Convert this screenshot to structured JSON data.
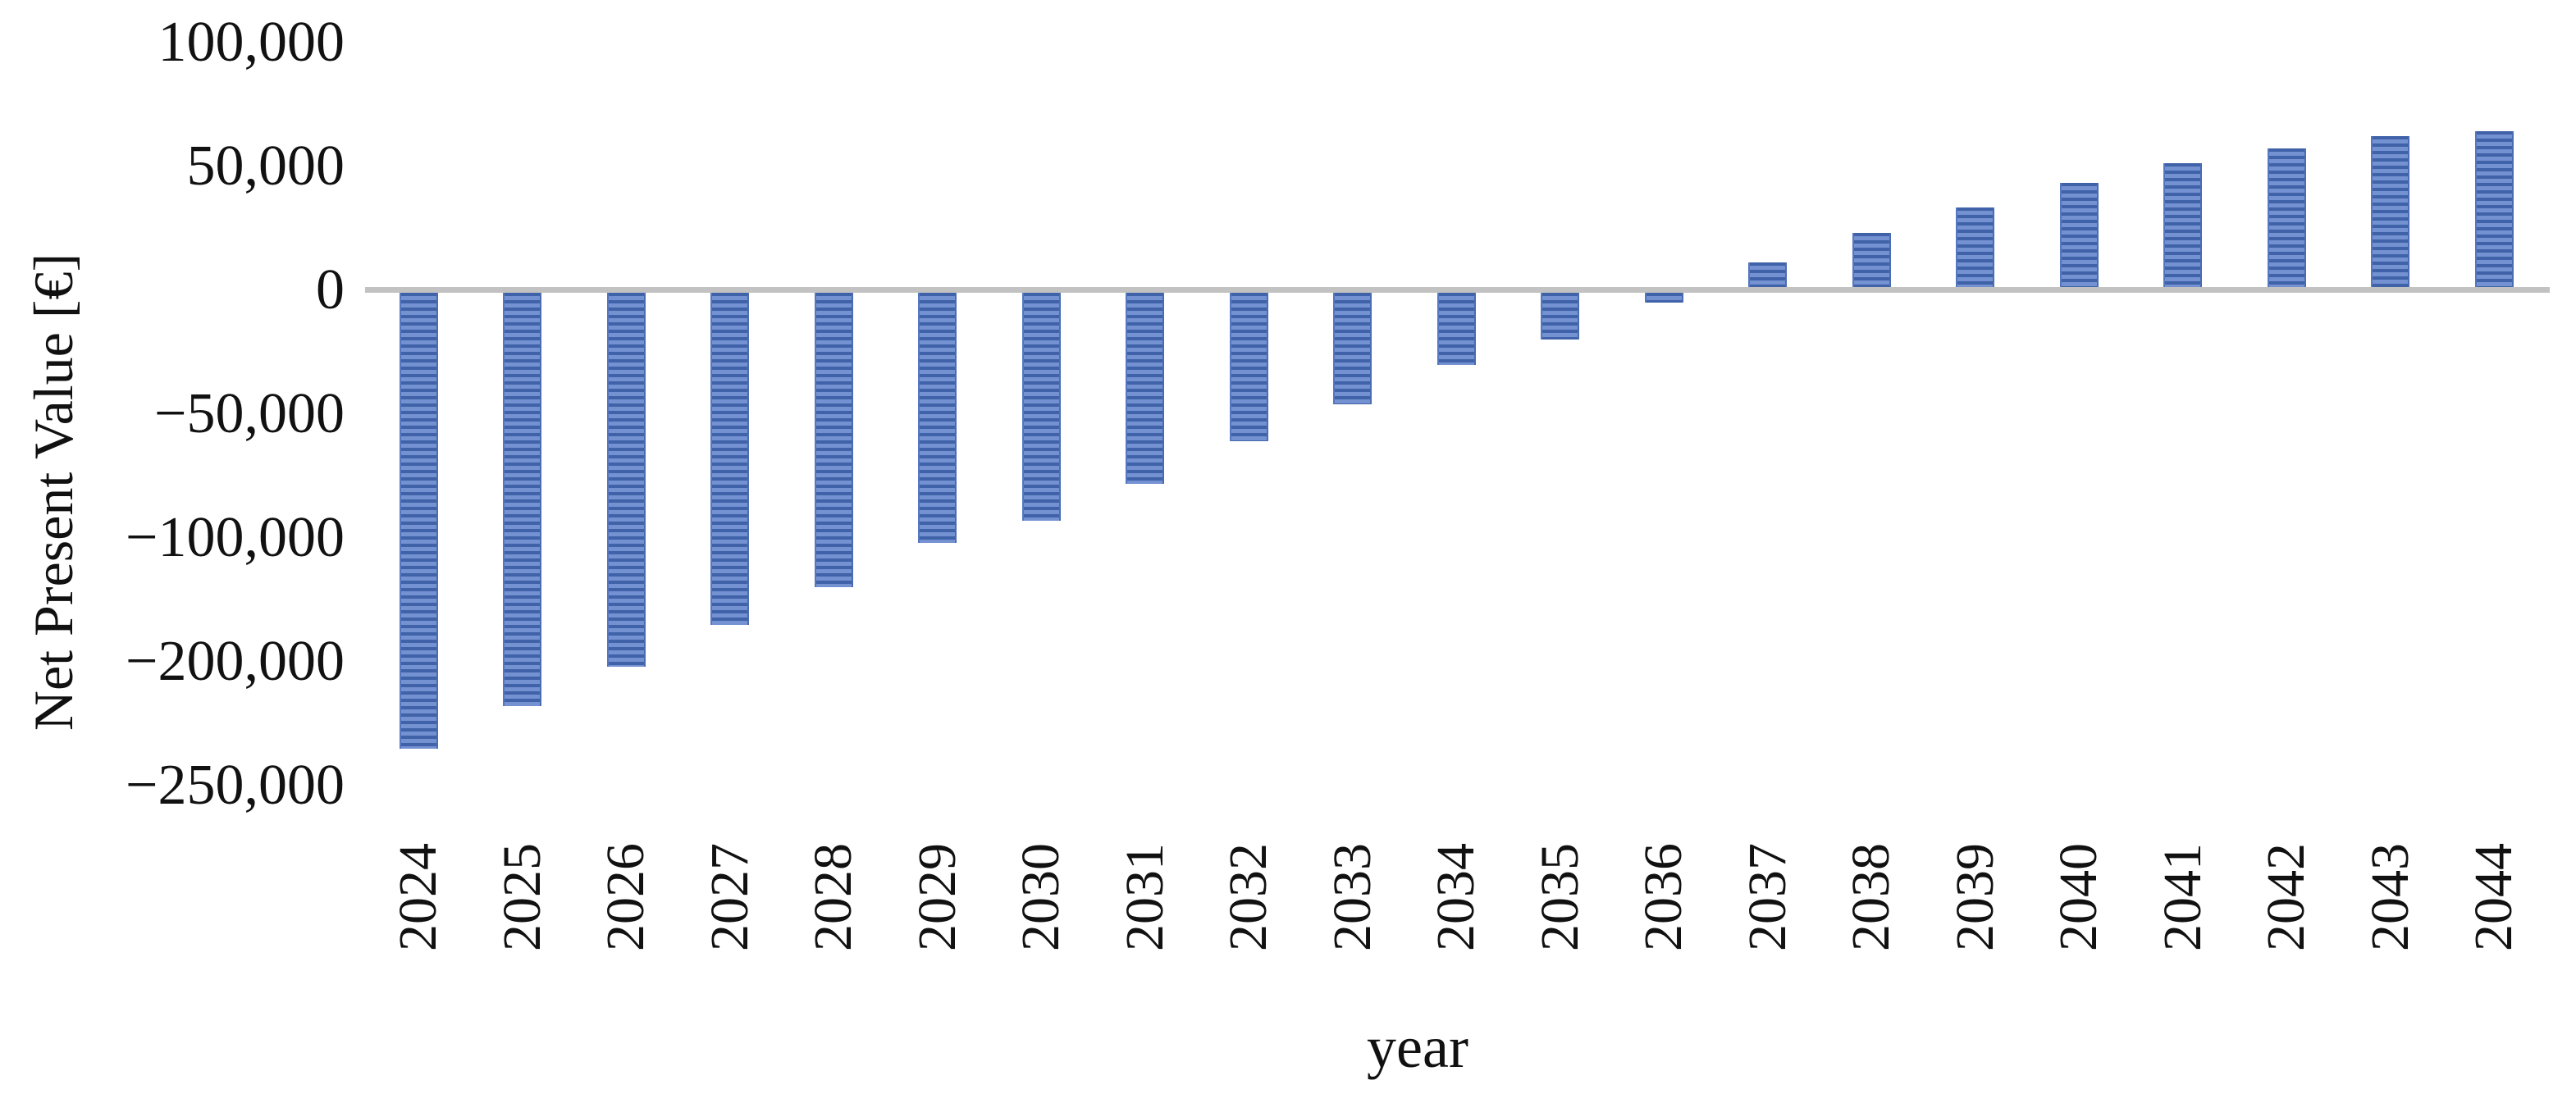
{
  "figure": {
    "y_axis_title": "Net Present Value [€]",
    "x_axis_title": "year",
    "colors": {
      "bar_stripe_dark": "#3f62a8",
      "bar_body_light": "#7491d2",
      "bar_edge": "#5577c0",
      "zero_line": "#c2c2c2",
      "text": "#111111",
      "background": "#ffffff"
    }
  },
  "chart_data": {
    "type": "bar",
    "title": "",
    "xlabel": "year",
    "ylabel": "Net Present Value [€]",
    "categories": [
      "2024",
      "2025",
      "2026",
      "2027",
      "2028",
      "2029",
      "2030",
      "2031",
      "2032",
      "2033",
      "2034",
      "2035",
      "2036",
      "2037",
      "2038",
      "2039",
      "2040",
      "2041",
      "2042",
      "2043",
      "2044"
    ],
    "values": [
      -184000,
      -167000,
      -151000,
      -134000,
      -119000,
      -101000,
      -92000,
      -77000,
      -60000,
      -45000,
      -29000,
      -19000,
      -4000,
      10000,
      22000,
      32000,
      42000,
      50000,
      56000,
      61000,
      63000
    ],
    "series_name": "Net Present Value",
    "bar_fill_pattern": "horizontal-stripes",
    "bar_color": "#4a6cb3",
    "y_tick_labels": [
      "100,000",
      "50,000",
      "0",
      "−50,000",
      "−100,000",
      "−200,000",
      "−250,000"
    ],
    "y_unit_per_tick": 50000,
    "ylim": [
      -250000,
      100000
    ],
    "grid": false,
    "legend": "none",
    "x_tick_rotation_deg": 90,
    "zero_crossing_between": [
      "2036",
      "2037"
    ]
  }
}
